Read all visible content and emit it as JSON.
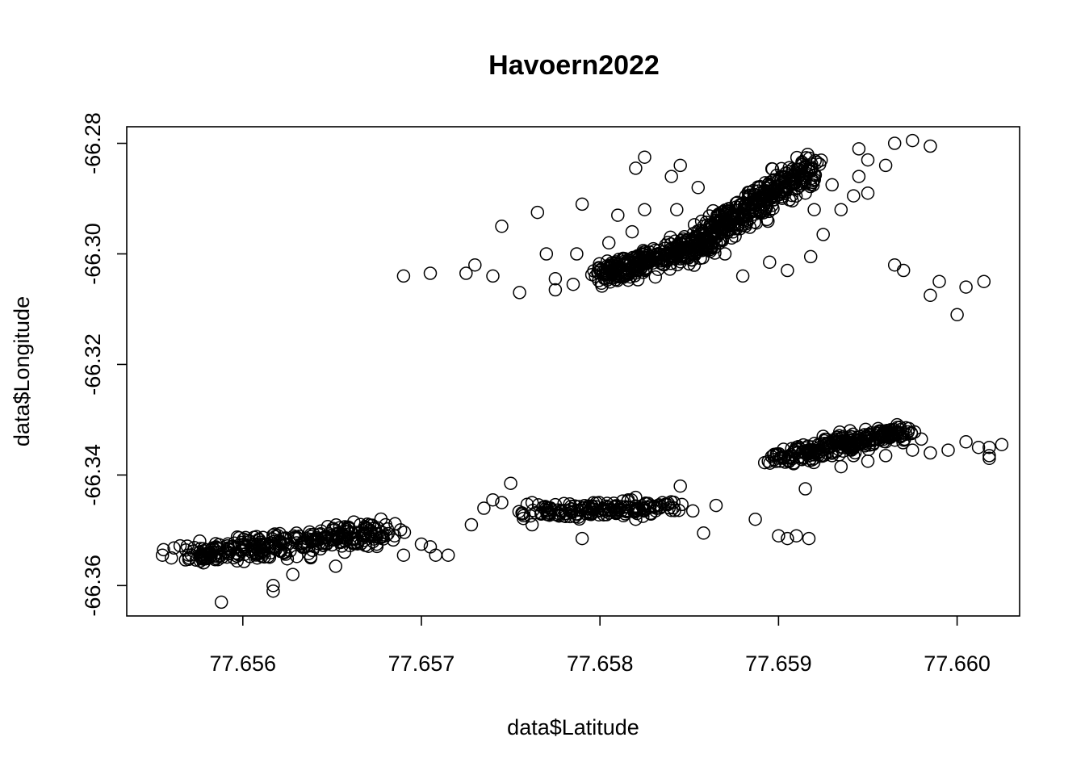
{
  "chart_data": {
    "type": "scatter",
    "title": "Havoern2022",
    "xlabel": "data$Latitude",
    "ylabel": "data$Longitude",
    "xlim": [
      77.65535,
      77.66035
    ],
    "ylim": [
      -66.3655,
      -66.277
    ],
    "xticks": [
      77.656,
      77.657,
      77.658,
      77.659,
      77.66
    ],
    "xtick_labels": [
      "77.656",
      "77.657",
      "77.658",
      "77.659",
      "77.660"
    ],
    "yticks": [
      -66.28,
      -66.3,
      -66.32,
      -66.34,
      -66.36
    ],
    "ytick_labels": [
      "-66.28",
      "-66.30",
      "-66.32",
      "-66.34",
      "-66.36"
    ],
    "grid": false,
    "marker": "open-circle",
    "clusters": [
      {
        "x_range": [
          77.6557,
          77.6568
        ],
        "y_line": [
          [
            77.6557,
            -66.3545
          ],
          [
            77.6568,
            -66.3505
          ]
        ],
        "spread_y": 0.0022,
        "density": 320
      },
      {
        "x_range": [
          77.6576,
          77.6584
        ],
        "y_line": [
          [
            77.6576,
            -66.347
          ],
          [
            77.6584,
            -66.3455
          ]
        ],
        "spread_y": 0.0014,
        "density": 170
      },
      {
        "x_range": [
          77.658,
          77.6585
        ],
        "y_line": [
          [
            77.658,
            -66.304
          ],
          [
            77.6585,
            -66.299
          ]
        ],
        "spread_y": 0.0022,
        "density": 260
      },
      {
        "x_range": [
          77.6585,
          77.6592
        ],
        "y_line": [
          [
            77.6585,
            -66.299
          ],
          [
            77.6592,
            -66.284
          ]
        ],
        "spread_y": 0.003,
        "density": 420
      },
      {
        "x_range": [
          77.659,
          77.6597
        ],
        "y_line": [
          [
            77.659,
            -66.337
          ],
          [
            77.6597,
            -66.332
          ]
        ],
        "spread_y": 0.0016,
        "density": 260
      }
    ],
    "points": [
      [
        77.65555,
        -66.3545
      ],
      [
        77.6556,
        -66.355
      ],
      [
        77.6557,
        -66.355
      ],
      [
        77.6558,
        -66.3545
      ],
      [
        77.65585,
        -66.353
      ],
      [
        77.65588,
        -66.363
      ],
      [
        77.65617,
        -66.36
      ],
      [
        77.65617,
        -66.361
      ],
      [
        77.65628,
        -66.358
      ],
      [
        77.65652,
        -66.3565
      ],
      [
        77.6568,
        -66.349
      ],
      [
        77.65685,
        -66.351
      ],
      [
        77.6569,
        -66.3545
      ],
      [
        77.657,
        -66.3525
      ],
      [
        77.65705,
        -66.353
      ],
      [
        77.65708,
        -66.3545
      ],
      [
        77.65715,
        -66.3545
      ],
      [
        77.6569,
        -66.304
      ],
      [
        77.65705,
        -66.3035
      ],
      [
        77.65725,
        -66.3035
      ],
      [
        77.65728,
        -66.349
      ],
      [
        77.65735,
        -66.346
      ],
      [
        77.6574,
        -66.3445
      ],
      [
        77.65745,
        -66.345
      ],
      [
        77.6573,
        -66.302
      ],
      [
        77.65745,
        -66.295
      ],
      [
        77.65762,
        -66.349
      ],
      [
        77.65765,
        -66.2925
      ],
      [
        77.65775,
        -66.3045
      ],
      [
        77.65778,
        -66.3465
      ],
      [
        77.6579,
        -66.291
      ],
      [
        77.65795,
        -66.347
      ],
      [
        77.6579,
        -66.3515
      ],
      [
        77.65812,
        -66.3465
      ],
      [
        77.6582,
        -66.348
      ],
      [
        77.65835,
        -66.345
      ],
      [
        77.65845,
        -66.342
      ],
      [
        77.65852,
        -66.3465
      ],
      [
        77.65858,
        -66.3505
      ],
      [
        77.65865,
        -66.3455
      ],
      [
        77.65887,
        -66.348
      ],
      [
        77.659,
        -66.351
      ],
      [
        77.65905,
        -66.3515
      ],
      [
        77.6591,
        -66.351
      ],
      [
        77.65917,
        -66.3515
      ],
      [
        77.65915,
        -66.3425
      ],
      [
        77.6575,
        -66.3415
      ],
      [
        77.65762,
        -66.345
      ],
      [
        77.6577,
        -66.3
      ],
      [
        77.6574,
        -66.304
      ],
      [
        77.65755,
        -66.307
      ],
      [
        77.65775,
        -66.3065
      ],
      [
        77.65785,
        -66.3055
      ],
      [
        77.658,
        -66.303
      ],
      [
        77.65787,
        -66.3
      ],
      [
        77.65813,
        -66.301
      ],
      [
        77.65805,
        -66.298
      ],
      [
        77.65818,
        -66.296
      ],
      [
        77.6584,
        -66.286
      ],
      [
        77.65825,
        -66.2825
      ],
      [
        77.65845,
        -66.284
      ],
      [
        77.6582,
        -66.2845
      ],
      [
        77.65855,
        -66.288
      ],
      [
        77.6581,
        -66.293
      ],
      [
        77.65825,
        -66.292
      ],
      [
        77.65843,
        -66.292
      ],
      [
        77.65858,
        -66.295
      ],
      [
        77.6587,
        -66.3
      ],
      [
        77.6588,
        -66.304
      ],
      [
        77.65895,
        -66.3015
      ],
      [
        77.65905,
        -66.303
      ],
      [
        77.65918,
        -66.3005
      ],
      [
        77.65935,
        -66.292
      ],
      [
        77.65945,
        -66.286
      ],
      [
        77.6595,
        -66.283
      ],
      [
        77.6596,
        -66.284
      ],
      [
        77.65945,
        -66.281
      ],
      [
        77.65965,
        -66.28
      ],
      [
        77.65975,
        -66.2795
      ],
      [
        77.65985,
        -66.2805
      ],
      [
        77.65942,
        -66.2895
      ],
      [
        77.6593,
        -66.2875
      ],
      [
        77.6595,
        -66.289
      ],
      [
        77.65965,
        -66.302
      ],
      [
        77.6597,
        -66.303
      ],
      [
        77.65925,
        -66.2965
      ],
      [
        77.65915,
        -66.289
      ],
      [
        77.6592,
        -66.292
      ],
      [
        77.6599,
        -66.305
      ],
      [
        77.65985,
        -66.3075
      ],
      [
        77.66,
        -66.311
      ],
      [
        77.66005,
        -66.306
      ],
      [
        77.66015,
        -66.305
      ],
      [
        77.66018,
        -66.337
      ],
      [
        77.66018,
        -66.3365
      ],
      [
        77.66025,
        -66.3345
      ],
      [
        77.66018,
        -66.335
      ],
      [
        77.66012,
        -66.335
      ],
      [
        77.66005,
        -66.334
      ],
      [
        77.6596,
        -66.334
      ],
      [
        77.65975,
        -66.3355
      ],
      [
        77.65985,
        -66.336
      ],
      [
        77.65995,
        -66.3355
      ],
      [
        77.6592,
        -66.337
      ],
      [
        77.6593,
        -66.3365
      ],
      [
        77.6591,
        -66.335
      ],
      [
        77.65925,
        -66.333
      ],
      [
        77.6594,
        -66.332
      ],
      [
        77.65955,
        -66.3325
      ],
      [
        77.65968,
        -66.333
      ],
      [
        77.65935,
        -66.3385
      ],
      [
        77.6595,
        -66.3375
      ],
      [
        77.65942,
        -66.3365
      ],
      [
        77.6596,
        -66.3365
      ],
      [
        77.6598,
        -66.3335
      ]
    ]
  }
}
